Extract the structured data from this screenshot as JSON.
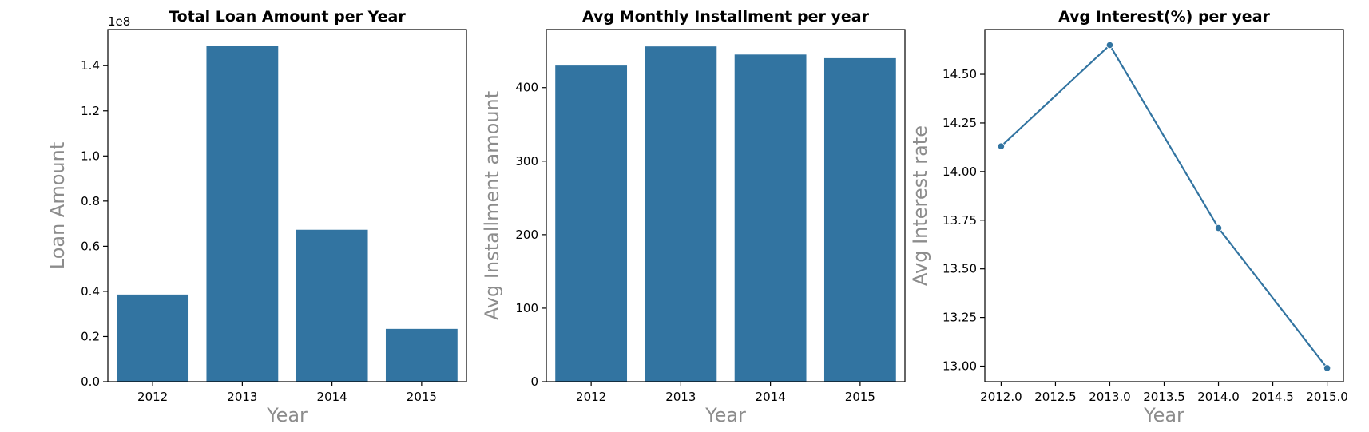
{
  "figure": {
    "background": "#ffffff",
    "series_color": "#3274a1",
    "label_color": "#8c8c8c"
  },
  "chart_data": [
    {
      "type": "bar",
      "title": "Total Loan Amount per Year",
      "xlabel": "Year",
      "ylabel": "Loan Amount",
      "categories": [
        "2012",
        "2013",
        "2014",
        "2015"
      ],
      "values": [
        38600000,
        148800000,
        67300000,
        23400000
      ],
      "ylim": [
        0,
        156000000
      ],
      "yticks": [
        0,
        20000000,
        40000000,
        60000000,
        80000000,
        100000000,
        120000000,
        140000000
      ],
      "ytick_labels": [
        "0.0",
        "0.2",
        "0.4",
        "0.6",
        "0.8",
        "1.0",
        "1.2",
        "1.4"
      ],
      "y_offset_label": "1e8",
      "grid": false,
      "color": "#3274a1"
    },
    {
      "type": "bar",
      "title": "Avg Monthly Installment per year",
      "xlabel": "Year",
      "ylabel": "Avg Installment amount",
      "categories": [
        "2012",
        "2013",
        "2014",
        "2015"
      ],
      "values": [
        430,
        456,
        445,
        440
      ],
      "ylim": [
        0,
        479
      ],
      "yticks": [
        0,
        100,
        200,
        300,
        400
      ],
      "ytick_labels": [
        "0",
        "100",
        "200",
        "300",
        "400"
      ],
      "grid": false,
      "color": "#3274a1"
    },
    {
      "type": "line",
      "title": "Avg Interest(%) per year",
      "xlabel": "Year",
      "ylabel": "Avg Interest rate",
      "x": [
        2012,
        2013,
        2014,
        2015
      ],
      "y": [
        14.13,
        14.65,
        13.71,
        12.99
      ],
      "xlim": [
        2011.85,
        2015.15
      ],
      "ylim": [
        12.92,
        14.73
      ],
      "xticks": [
        2012.0,
        2012.5,
        2013.0,
        2013.5,
        2014.0,
        2014.5,
        2015.0
      ],
      "xtick_labels": [
        "2012.0",
        "2012.5",
        "2013.0",
        "2013.5",
        "2014.0",
        "2014.5",
        "2015.0"
      ],
      "yticks": [
        13.0,
        13.25,
        13.5,
        13.75,
        14.0,
        14.25,
        14.5
      ],
      "ytick_labels": [
        "13.00",
        "13.25",
        "13.50",
        "13.75",
        "14.00",
        "14.25",
        "14.50"
      ],
      "markers": true,
      "grid": false,
      "color": "#3274a1"
    }
  ]
}
